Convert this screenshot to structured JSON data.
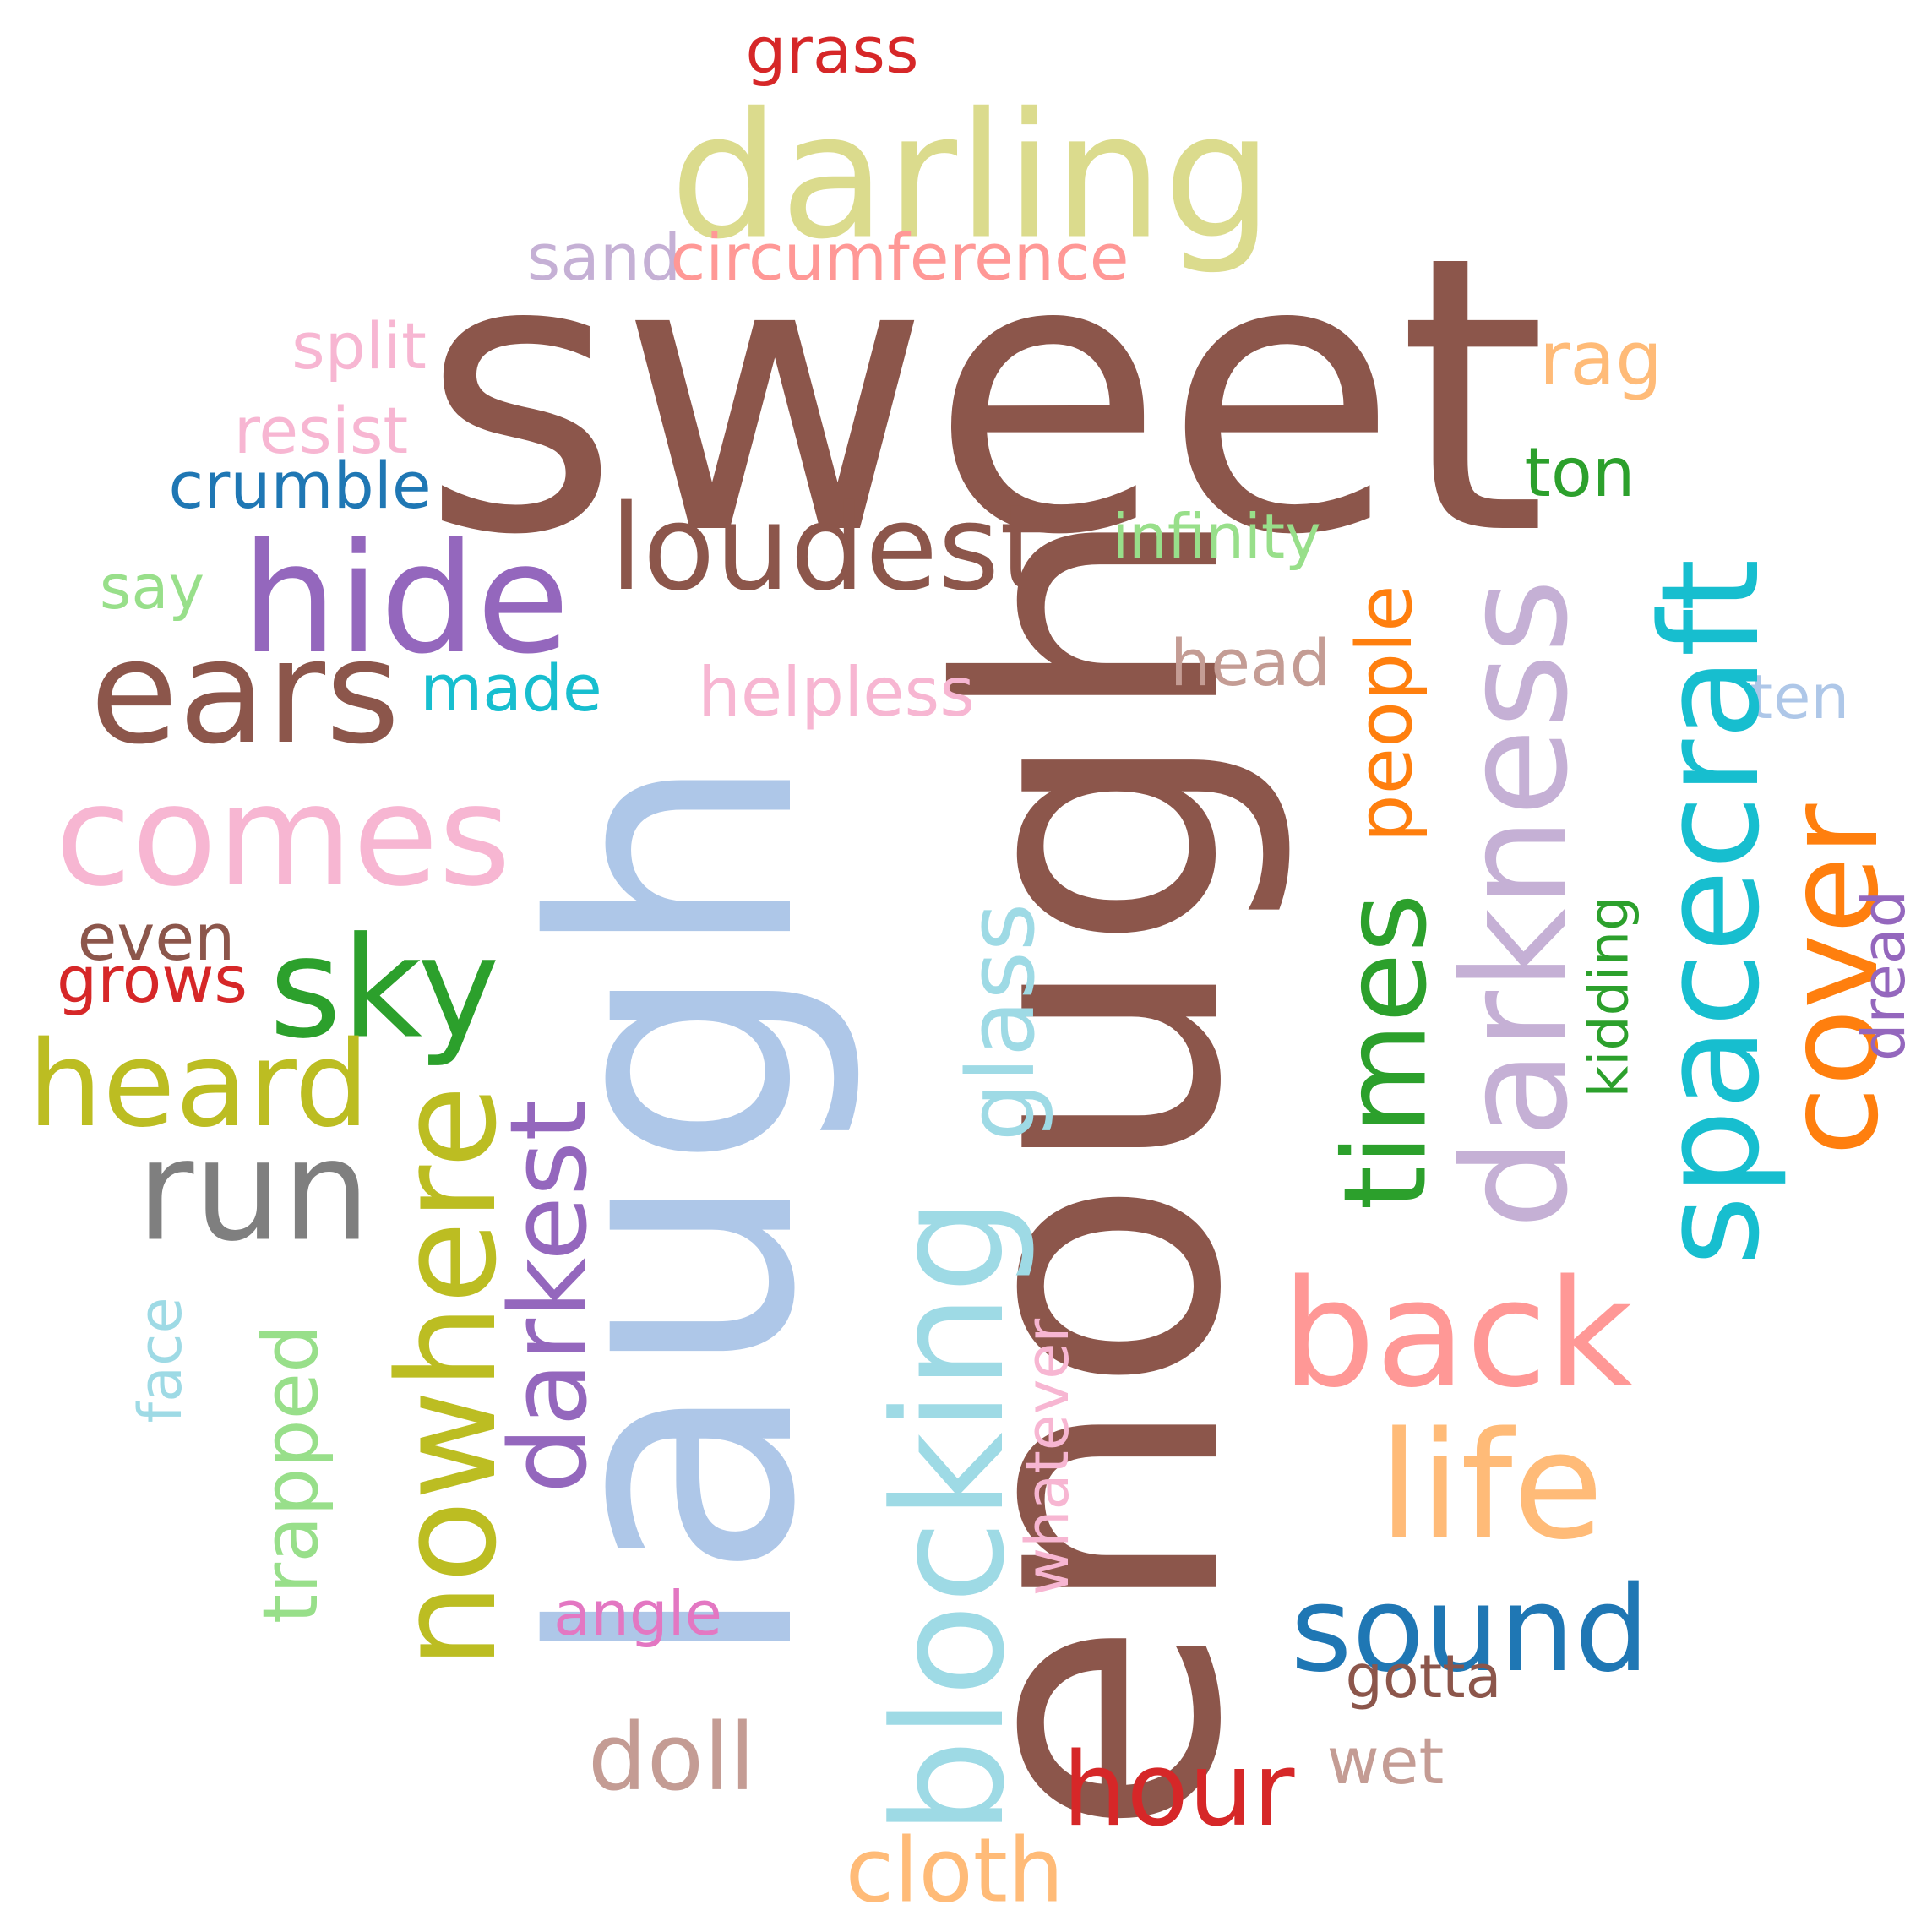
{
  "words": [
    {
      "text": "sweet",
      "color": "#8c564b"
    },
    {
      "text": "laugh",
      "color": "#aec7e8"
    },
    {
      "text": "enough",
      "color": "#8c564b"
    },
    {
      "text": "darling",
      "color": "#dbdb8d"
    },
    {
      "text": "grass",
      "color": "#d62728"
    },
    {
      "text": "sand",
      "color": "#c5b0d5"
    },
    {
      "text": "circumference",
      "color": "#ff9896"
    },
    {
      "text": "split",
      "color": "#f7b6d2"
    },
    {
      "text": "resist",
      "color": "#f7b6d2"
    },
    {
      "text": "crumble",
      "color": "#1f77b4"
    },
    {
      "text": "rag",
      "color": "#ffbb78"
    },
    {
      "text": "ton",
      "color": "#2ca02c"
    },
    {
      "text": "infinity",
      "color": "#98df8a"
    },
    {
      "text": "loudest",
      "color": "#8c564b"
    },
    {
      "text": "hide",
      "color": "#9467bd"
    },
    {
      "text": "say",
      "color": "#98df8a"
    },
    {
      "text": "ears",
      "color": "#8c564b"
    },
    {
      "text": "made",
      "color": "#17becf"
    },
    {
      "text": "helpless",
      "color": "#f7b6d2"
    },
    {
      "text": "head",
      "color": "#c49c94"
    },
    {
      "text": "ten",
      "color": "#aec7e8"
    },
    {
      "text": "comes",
      "color": "#f7b6d2"
    },
    {
      "text": "people",
      "color": "#ff7f0e"
    },
    {
      "text": "darkness",
      "color": "#c5b0d5"
    },
    {
      "text": "spacecraft",
      "color": "#17becf"
    },
    {
      "text": "cover",
      "color": "#ff7f0e"
    },
    {
      "text": "kidding",
      "color": "#2ca02c"
    },
    {
      "text": "dread",
      "color": "#9467bd"
    },
    {
      "text": "even",
      "color": "#8c564b"
    },
    {
      "text": "grows",
      "color": "#d62728"
    },
    {
      "text": "sky",
      "color": "#2ca02c"
    },
    {
      "text": "glass",
      "color": "#9edae5"
    },
    {
      "text": "times",
      "color": "#2ca02c"
    },
    {
      "text": "heard",
      "color": "#bcbd22"
    },
    {
      "text": "run",
      "color": "#7f7f7f"
    },
    {
      "text": "nowhere",
      "color": "#bcbd22"
    },
    {
      "text": "darkest",
      "color": "#9467bd"
    },
    {
      "text": "blocking",
      "color": "#9edae5"
    },
    {
      "text": "back",
      "color": "#ff9896"
    },
    {
      "text": "face",
      "color": "#9edae5"
    },
    {
      "text": "trapped",
      "color": "#98df8a"
    },
    {
      "text": "whatever",
      "color": "#f7b6d2"
    },
    {
      "text": "life",
      "color": "#ffbb78"
    },
    {
      "text": "sound",
      "color": "#1f77b4"
    },
    {
      "text": "angle",
      "color": "#e377c2"
    },
    {
      "text": "gotta",
      "color": "#8c564b"
    },
    {
      "text": "doll",
      "color": "#c49c94"
    },
    {
      "text": "hour",
      "color": "#d62728"
    },
    {
      "text": "wet",
      "color": "#c49c94"
    },
    {
      "text": "cloth",
      "color": "#ffbb78"
    }
  ]
}
